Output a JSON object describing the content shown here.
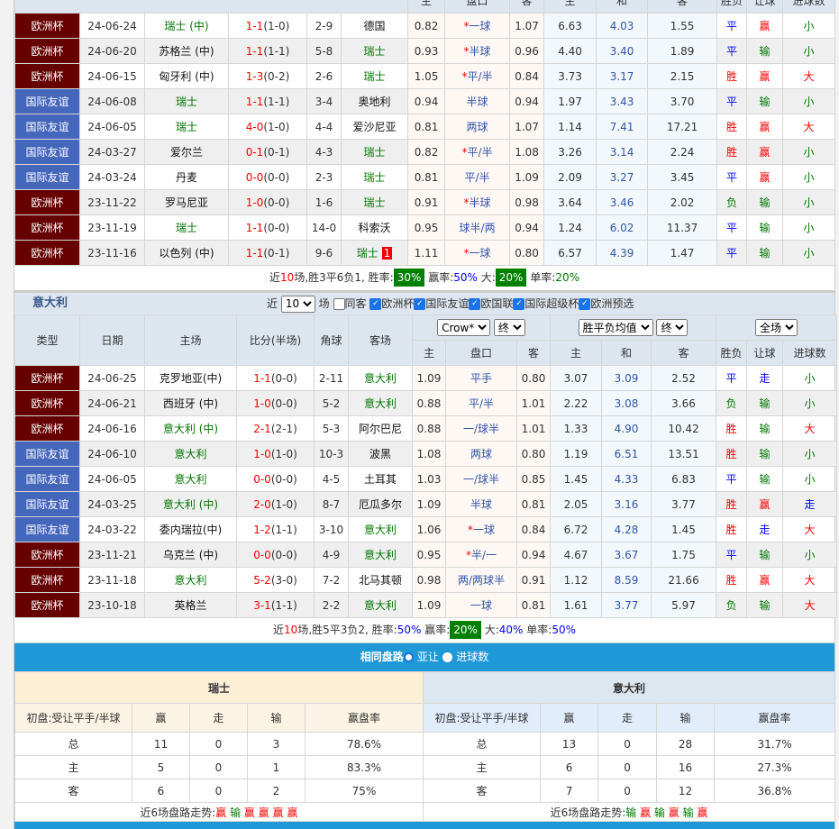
{
  "colors": {
    "euro_cup": "#660000",
    "friendly": "#4466bb",
    "highlight": "#008000",
    "bar": "#1e98d6"
  },
  "top_headers": [
    "主",
    "盘口",
    "客",
    "主",
    "和",
    "客",
    "胜负",
    "让球",
    "进球数"
  ],
  "swiss": {
    "team": "瑞士",
    "rows": [
      {
        "type": "欧洲杯",
        "date": "24-06-24",
        "home": "瑞士 (中)",
        "score": "1-1",
        "half": "(1-0)",
        "corner": "2-9",
        "away": "德国",
        "o1": "0.82",
        "line": "一球",
        "star": true,
        "o2": "1.07",
        "w": "6.63",
        "d": "4.03",
        "l": "1.55",
        "res": "平",
        "ah": "赢",
        "ou": "小"
      },
      {
        "type": "欧洲杯",
        "date": "24-06-20",
        "home": "苏格兰 (中)",
        "score": "1-1",
        "half": "(1-1)",
        "corner": "5-8",
        "away": "瑞士",
        "o1": "0.93",
        "line": "半球",
        "star": true,
        "o2": "0.96",
        "w": "4.40",
        "d": "3.40",
        "l": "1.89",
        "res": "平",
        "ah": "输",
        "ou": "小"
      },
      {
        "type": "欧洲杯",
        "date": "24-06-15",
        "home": "匈牙利 (中)",
        "score": "1-3",
        "half": "(0-2)",
        "corner": "2-6",
        "away": "瑞士",
        "o1": "1.05",
        "line": "平/半",
        "star": true,
        "o2": "0.84",
        "w": "3.73",
        "d": "3.17",
        "l": "2.15",
        "res": "胜",
        "ah": "赢",
        "ou": "大"
      },
      {
        "type": "国际友谊",
        "date": "24-06-08",
        "home": "瑞士",
        "score": "1-1",
        "half": "(1-1)",
        "corner": "3-4",
        "away": "奥地利",
        "o1": "0.94",
        "line": "半球",
        "star": false,
        "o2": "0.94",
        "w": "1.97",
        "d": "3.43",
        "l": "3.70",
        "res": "平",
        "ah": "输",
        "ou": "小"
      },
      {
        "type": "国际友谊",
        "date": "24-06-05",
        "home": "瑞士",
        "score": "4-0",
        "half": "(1-0)",
        "corner": "4-4",
        "away": "爱沙尼亚",
        "o1": "0.81",
        "line": "两球",
        "star": false,
        "o2": "1.07",
        "w": "1.14",
        "d": "7.41",
        "l": "17.21",
        "res": "胜",
        "ah": "赢",
        "ou": "大"
      },
      {
        "type": "国际友谊",
        "date": "24-03-27",
        "home": "爱尔兰",
        "score": "0-1",
        "half": "(0-1)",
        "corner": "4-3",
        "away": "瑞士",
        "o1": "0.82",
        "line": "平/半",
        "star": true,
        "o2": "1.08",
        "w": "3.26",
        "d": "3.14",
        "l": "2.24",
        "res": "胜",
        "ah": "赢",
        "ou": "小"
      },
      {
        "type": "国际友谊",
        "date": "24-03-24",
        "home": "丹麦",
        "score": "0-0",
        "half": "(0-0)",
        "corner": "2-3",
        "away": "瑞士",
        "o1": "0.81",
        "line": "平/半",
        "star": false,
        "o2": "1.09",
        "w": "2.09",
        "d": "3.27",
        "l": "3.45",
        "res": "平",
        "ah": "赢",
        "ou": "小"
      },
      {
        "type": "欧洲杯",
        "date": "23-11-22",
        "home": "罗马尼亚",
        "score": "1-0",
        "half": "(0-0)",
        "corner": "1-6",
        "away": "瑞士",
        "o1": "0.91",
        "line": "半球",
        "star": true,
        "o2": "0.98",
        "w": "3.64",
        "d": "3.46",
        "l": "2.02",
        "res": "负",
        "ah": "输",
        "ou": "小"
      },
      {
        "type": "欧洲杯",
        "date": "23-11-19",
        "home": "瑞士",
        "score": "1-1",
        "half": "(0-0)",
        "corner": "14-0",
        "away": "科索沃",
        "o1": "0.95",
        "line": "球半/两",
        "star": false,
        "o2": "0.94",
        "w": "1.24",
        "d": "6.02",
        "l": "11.37",
        "res": "平",
        "ah": "输",
        "ou": "小"
      },
      {
        "type": "欧洲杯",
        "date": "23-11-16",
        "home": "以色列 (中)",
        "score": "1-1",
        "half": "(0-1)",
        "corner": "9-6",
        "away": "瑞士",
        "card": "1",
        "o1": "1.11",
        "line": "一球",
        "star": true,
        "o2": "0.80",
        "w": "6.57",
        "d": "4.39",
        "l": "1.47",
        "res": "平",
        "ah": "输",
        "ou": "小"
      }
    ],
    "summary": {
      "a": "近",
      "n": "10",
      "b": "场,胜3平6负1, 胜率:",
      "win": "30%",
      "c": " 赢率:",
      "ah": "50%",
      "d": " 大:",
      "big": "20%",
      "e": " 单率:",
      "odd": "20%"
    }
  },
  "italy_section": {
    "title": "意大利",
    "near": "近",
    "count": "10",
    "games": "场",
    "same_away": "同客",
    "filters": [
      "欧洲杯",
      "国际友谊",
      "欧国联",
      "国际超级杯",
      "欧洲预选"
    ]
  },
  "headers": {
    "type": "类型",
    "date": "日期",
    "home": "主场",
    "score": "比分(半场)",
    "corner": "角球",
    "away": "客场",
    "company": "Crow*",
    "final1": "终",
    "avg": "胜平负均值",
    "final2": "终",
    "scope": "全场"
  },
  "italy": {
    "team": "意大利",
    "rows": [
      {
        "type": "欧洲杯",
        "date": "24-06-25",
        "home": "克罗地亚(中)",
        "score": "1-1",
        "half": "(0-0)",
        "corner": "2-11",
        "away": "意大利",
        "o1": "1.09",
        "line": "平手",
        "star": false,
        "o2": "0.80",
        "w": "3.07",
        "d": "3.09",
        "l": "2.52",
        "res": "平",
        "ah": "走",
        "ou": "小"
      },
      {
        "type": "欧洲杯",
        "date": "24-06-21",
        "home": "西班牙 (中)",
        "score": "1-0",
        "half": "(0-0)",
        "corner": "5-2",
        "away": "意大利",
        "o1": "0.88",
        "line": "平/半",
        "star": false,
        "o2": "1.01",
        "w": "2.22",
        "d": "3.08",
        "l": "3.66",
        "res": "负",
        "ah": "输",
        "ou": "小"
      },
      {
        "type": "欧洲杯",
        "date": "24-06-16",
        "home": "意大利 (中)",
        "score": "2-1",
        "half": "(2-1)",
        "corner": "5-3",
        "away": "阿尔巴尼",
        "o1": "0.88",
        "line": "一/球半",
        "star": false,
        "o2": "1.01",
        "w": "1.33",
        "d": "4.90",
        "l": "10.42",
        "res": "胜",
        "ah": "输",
        "ou": "大"
      },
      {
        "type": "国际友谊",
        "date": "24-06-10",
        "home": "意大利",
        "score": "1-0",
        "half": "(1-0)",
        "corner": "10-3",
        "away": "波黑",
        "o1": "1.08",
        "line": "两球",
        "star": false,
        "o2": "0.80",
        "w": "1.19",
        "d": "6.51",
        "l": "13.51",
        "res": "胜",
        "ah": "输",
        "ou": "小"
      },
      {
        "type": "国际友谊",
        "date": "24-06-05",
        "home": "意大利",
        "score": "0-0",
        "half": "(0-0)",
        "corner": "4-5",
        "away": "土耳其",
        "o1": "1.03",
        "line": "一/球半",
        "star": false,
        "o2": "0.85",
        "w": "1.45",
        "d": "4.33",
        "l": "6.83",
        "res": "平",
        "ah": "输",
        "ou": "小"
      },
      {
        "type": "国际友谊",
        "date": "24-03-25",
        "home": "意大利 (中)",
        "score": "2-0",
        "half": "(1-0)",
        "corner": "8-7",
        "away": "厄瓜多尔",
        "o1": "1.09",
        "line": "半球",
        "star": false,
        "o2": "0.81",
        "w": "2.05",
        "d": "3.16",
        "l": "3.77",
        "res": "胜",
        "ah": "赢",
        "ou": "走"
      },
      {
        "type": "国际友谊",
        "date": "24-03-22",
        "home": "委内瑞拉(中)",
        "score": "1-2",
        "half": "(1-1)",
        "corner": "3-10",
        "away": "意大利",
        "o1": "1.06",
        "line": "一球",
        "star": true,
        "o2": "0.84",
        "w": "6.72",
        "d": "4.28",
        "l": "1.45",
        "res": "胜",
        "ah": "走",
        "ou": "大"
      },
      {
        "type": "欧洲杯",
        "date": "23-11-21",
        "home": "乌克兰 (中)",
        "score": "0-0",
        "half": "(0-0)",
        "corner": "4-9",
        "away": "意大利",
        "o1": "0.95",
        "line": "半/一",
        "star": true,
        "o2": "0.94",
        "w": "4.67",
        "d": "3.67",
        "l": "1.75",
        "res": "平",
        "ah": "输",
        "ou": "小"
      },
      {
        "type": "欧洲杯",
        "date": "23-11-18",
        "home": "意大利",
        "score": "5-2",
        "half": "(3-0)",
        "corner": "7-2",
        "away": "北马其顿",
        "o1": "0.98",
        "line": "两/两球半",
        "star": false,
        "o2": "0.91",
        "w": "1.12",
        "d": "8.59",
        "l": "21.66",
        "res": "胜",
        "ah": "赢",
        "ou": "大"
      },
      {
        "type": "欧洲杯",
        "date": "23-10-18",
        "home": "英格兰",
        "score": "3-1",
        "half": "(1-1)",
        "corner": "2-2",
        "away": "意大利",
        "o1": "1.09",
        "line": "一球",
        "star": false,
        "o2": "0.81",
        "w": "1.61",
        "d": "3.77",
        "l": "5.97",
        "res": "负",
        "ah": "输",
        "ou": "大"
      }
    ],
    "summary": {
      "a": "近",
      "n": "10",
      "b": "场,胜5平3负2, 胜率:",
      "win": "50%",
      "c": " 赢率:",
      "ah": "20%",
      "d": " 大:",
      "big": "40%",
      "e": " 单率:",
      "odd": "50%"
    }
  },
  "same_handicap": {
    "title": "相同盘路",
    "opt1": "亚让",
    "opt2": "进球数",
    "cols": [
      "初盘:受让平手/半球",
      "赢",
      "走",
      "输",
      "赢盘率"
    ],
    "teams": [
      {
        "name": "瑞士",
        "rows": [
          [
            "总",
            "11",
            "0",
            "3",
            "78.6%"
          ],
          [
            "主",
            "5",
            "0",
            "1",
            "83.3%"
          ],
          [
            "客",
            "6",
            "0",
            "2",
            "75%"
          ]
        ],
        "trend_label": "近6场盘路走势:",
        "trend": [
          "赢",
          "输",
          "赢",
          "赢",
          "赢",
          "赢"
        ]
      },
      {
        "name": "意大利",
        "rows": [
          [
            "总",
            "13",
            "0",
            "28",
            "31.7%"
          ],
          [
            "主",
            "6",
            "0",
            "16",
            "27.3%"
          ],
          [
            "客",
            "7",
            "0",
            "12",
            "36.8%"
          ]
        ],
        "trend_label": "近6场盘路走势:",
        "trend": [
          "输",
          "赢",
          "输",
          "赢",
          "输",
          "赢"
        ]
      }
    ]
  }
}
